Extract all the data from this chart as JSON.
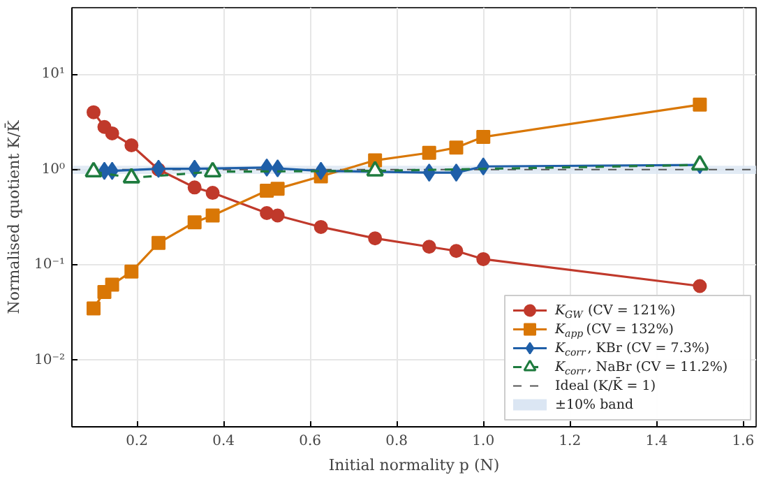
{
  "chart_data": {
    "type": "line",
    "xlabel": "Initial normality p (N)",
    "ylabel": "Normalised quotient K/K̄",
    "log": "y",
    "grid": true,
    "legend": "bottom right",
    "line_style": "solid",
    "xlim": [
      0.05,
      1.63
    ],
    "ylim": [
      0.002,
      50
    ],
    "xticks": [
      0.2,
      0.4,
      0.6,
      0.8,
      {
        "value": 1,
        "label": "1.0"
      },
      1.2,
      1.4,
      1.6
    ],
    "yticks": [
      {
        "value": 0.01,
        "label": "10⁻²"
      },
      {
        "value": 0.1,
        "label": "10⁻¹"
      },
      {
        "value": 1,
        "label": "10⁰"
      },
      {
        "value": 10,
        "label": "10¹"
      }
    ],
    "series": [
      {
        "name": "K$_{GW}$  (CV = 121%)",
        "color": "#c0392b",
        "marker": "circle",
        "x": [
          0.1,
          0.125,
          0.1429,
          0.1875,
          0.25,
          0.3333,
          0.375,
          0.5,
          0.525,
          0.625,
          0.75,
          0.875,
          0.9375,
          1.0,
          1.5
        ],
        "values": [
          4.0,
          2.8,
          2.4,
          1.8,
          1.0,
          0.65,
          0.57,
          0.35,
          0.33,
          0.25,
          0.19,
          0.155,
          0.14,
          0.115,
          0.06
        ]
      },
      {
        "name": "K$_{app}$ (CV = 132%)",
        "color": "#d97706",
        "marker": "square",
        "x": [
          0.1,
          0.125,
          0.1429,
          0.1875,
          0.25,
          0.3333,
          0.375,
          0.5,
          0.525,
          0.625,
          0.75,
          0.875,
          0.9375,
          1.0,
          1.5
        ],
        "values": [
          0.035,
          0.052,
          0.062,
          0.085,
          0.17,
          0.28,
          0.33,
          0.6,
          0.63,
          0.85,
          1.25,
          1.5,
          1.7,
          2.2,
          4.8
        ]
      },
      {
        "name": "K$_{corr}$, KBr  (CV = 7.3%)",
        "color": "#1f5fa8",
        "marker": "diamond",
        "x": [
          0.125,
          0.1429,
          0.25,
          0.3333,
          0.5,
          0.525,
          0.625,
          0.875,
          0.9375,
          1.0,
          1.5
        ],
        "values": [
          0.97,
          0.97,
          1.02,
          1.02,
          1.05,
          1.03,
          0.97,
          0.93,
          0.93,
          1.08,
          1.12
        ]
      },
      {
        "name": "K$_{corr}$, NaBr (CV = 11.2%)",
        "color": "#1e7b3e",
        "marker": "triangle",
        "line_style": "dashed",
        "x": [
          0.1,
          0.1875,
          0.375,
          0.75,
          1.5
        ],
        "values": [
          0.95,
          0.82,
          0.95,
          0.97,
          1.12
        ]
      }
    ],
    "ref_lines": [
      {
        "axis": "y",
        "value": 1,
        "label": "Ideal (K/K̄ = 1)",
        "color": "#555555",
        "line_style": "dashed"
      }
    ],
    "bands": [
      {
        "axis": "y",
        "from": 0.9,
        "to": 1.1,
        "label": "±10% band",
        "color": "#dbe6f3"
      }
    ]
  }
}
